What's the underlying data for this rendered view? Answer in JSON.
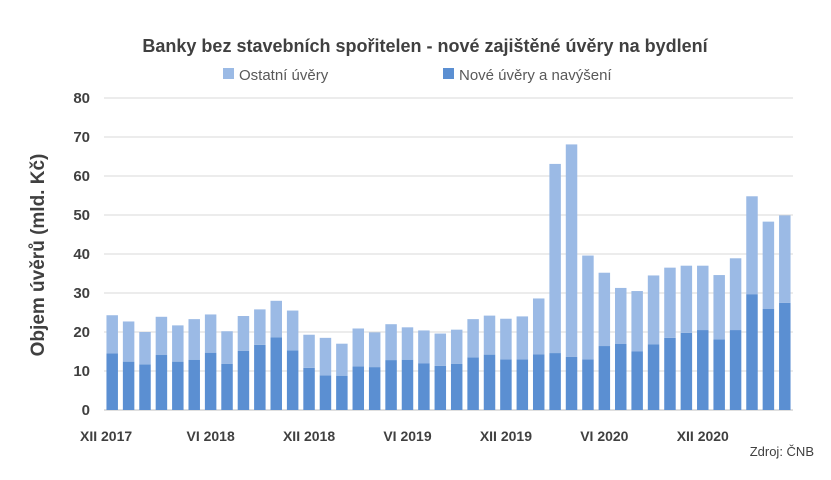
{
  "chart_data": {
    "type": "bar",
    "stacked": true,
    "title": "Banky bez stavebních spořitelen - nové zajištěné úvěry na bydlení",
    "ylabel": "Objem úvěrů (mld. Kč)",
    "xlabel": "",
    "ylim": [
      0,
      80
    ],
    "yticks": [
      0,
      10,
      20,
      30,
      40,
      50,
      60,
      70,
      80
    ],
    "grid": true,
    "legend_position": "top",
    "x_tick_labels": [
      {
        "index": 0,
        "label": "XII 2017"
      },
      {
        "index": 6,
        "label": "VI 2018"
      },
      {
        "index": 12,
        "label": "XII 2018"
      },
      {
        "index": 18,
        "label": "VI 2019"
      },
      {
        "index": 24,
        "label": "XII 2019"
      },
      {
        "index": 30,
        "label": "VI 2020"
      },
      {
        "index": 36,
        "label": "XII 2020"
      }
    ],
    "categories": [
      "XII 2017",
      "I 2018",
      "II 2018",
      "III 2018",
      "IV 2018",
      "V 2018",
      "VI 2018",
      "VII 2018",
      "VIII 2018",
      "IX 2018",
      "X 2018",
      "XI 2018",
      "XII 2018",
      "I 2019",
      "II 2019",
      "III 2019",
      "IV 2019",
      "V 2019",
      "VI 2019",
      "VII 2019",
      "VIII 2019",
      "IX 2019",
      "X 2019",
      "XI 2019",
      "XII 2019",
      "I 2020",
      "II 2020",
      "III 2020",
      "IV 2020",
      "V 2020",
      "VI 2020",
      "VII 2020",
      "VIII 2020",
      "IX 2020",
      "X 2020",
      "XI 2020",
      "XII 2020",
      "I 2021",
      "II 2021",
      "III 2021",
      "IV 2021",
      "V 2021"
    ],
    "series": [
      {
        "name": "Nové úvěry a navýšení",
        "color": "#5b8fd2",
        "values": [
          14.5,
          12.4,
          11.7,
          14.1,
          12.4,
          12.9,
          14.7,
          11.8,
          15.2,
          16.7,
          18.6,
          15.3,
          10.8,
          8.9,
          8.8,
          11.2,
          11.0,
          12.8,
          12.9,
          12.0,
          11.3,
          11.8,
          13.5,
          14.2,
          13.0,
          13.0,
          14.3,
          14.6,
          13.6,
          13.0,
          16.4,
          17.0,
          15.0,
          16.8,
          18.5,
          19.8,
          20.5,
          18.1,
          20.5,
          29.7,
          25.9,
          27.5
        ]
      },
      {
        "name": "Ostatní úvěry",
        "color": "#9bbae5",
        "values": [
          9.8,
          10.3,
          8.3,
          9.8,
          9.3,
          10.4,
          9.8,
          8.4,
          8.9,
          9.1,
          9.4,
          10.2,
          8.5,
          9.6,
          8.2,
          9.7,
          8.9,
          9.2,
          8.3,
          8.4,
          8.3,
          8.8,
          9.8,
          10.0,
          10.4,
          11.0,
          14.3,
          48.5,
          54.5,
          26.6,
          18.8,
          14.3,
          15.5,
          17.7,
          18.0,
          17.2,
          16.5,
          16.5,
          18.4,
          25.1,
          22.4,
          22.4
        ]
      }
    ],
    "source_note": "Zdroj: ČNB"
  },
  "colors": {
    "background": "#ffffff",
    "gridline": "#d9d9d9",
    "text": "#404040"
  }
}
